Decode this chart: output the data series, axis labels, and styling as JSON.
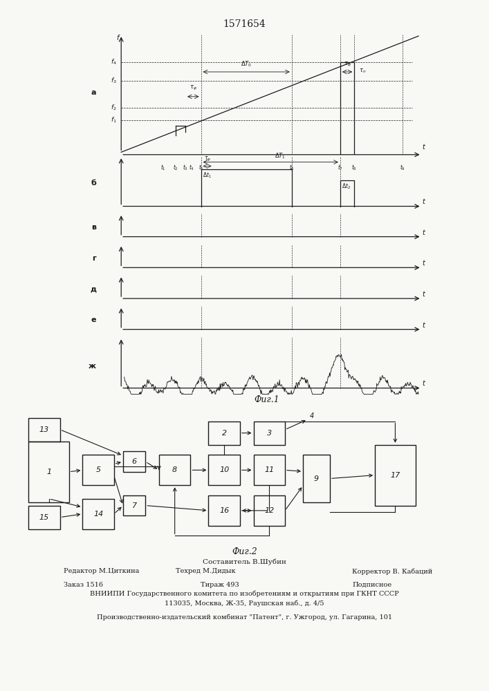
{
  "title": "1571654",
  "fig1_label": "Фиг.1",
  "fig2_label": "Фиг.2",
  "footer_line1": "Составитель В.Шубин",
  "footer_editor": "Редактор М.Циткина",
  "footer_tech": "Техред М.Дидык",
  "footer_corr": "Корректор В. Кабаций",
  "footer_order": "Заказ 1516",
  "footer_tirazh": "Тираж 493",
  "footer_podp": "Подписное",
  "footer_line4": "ВНИИПИ Государственного комитета по изобретениям и открытиям при ГКНТ СССР",
  "footer_line5": "113035, Москва, Ж-35, Раушская наб., д. 4/5",
  "footer_line6": "Производственно-издательский комбинат \"Патент\", г. Ужгород, ул. Гагарина, 101",
  "bg_color": "#f8f8f5",
  "line_color": "#1a1a1a"
}
